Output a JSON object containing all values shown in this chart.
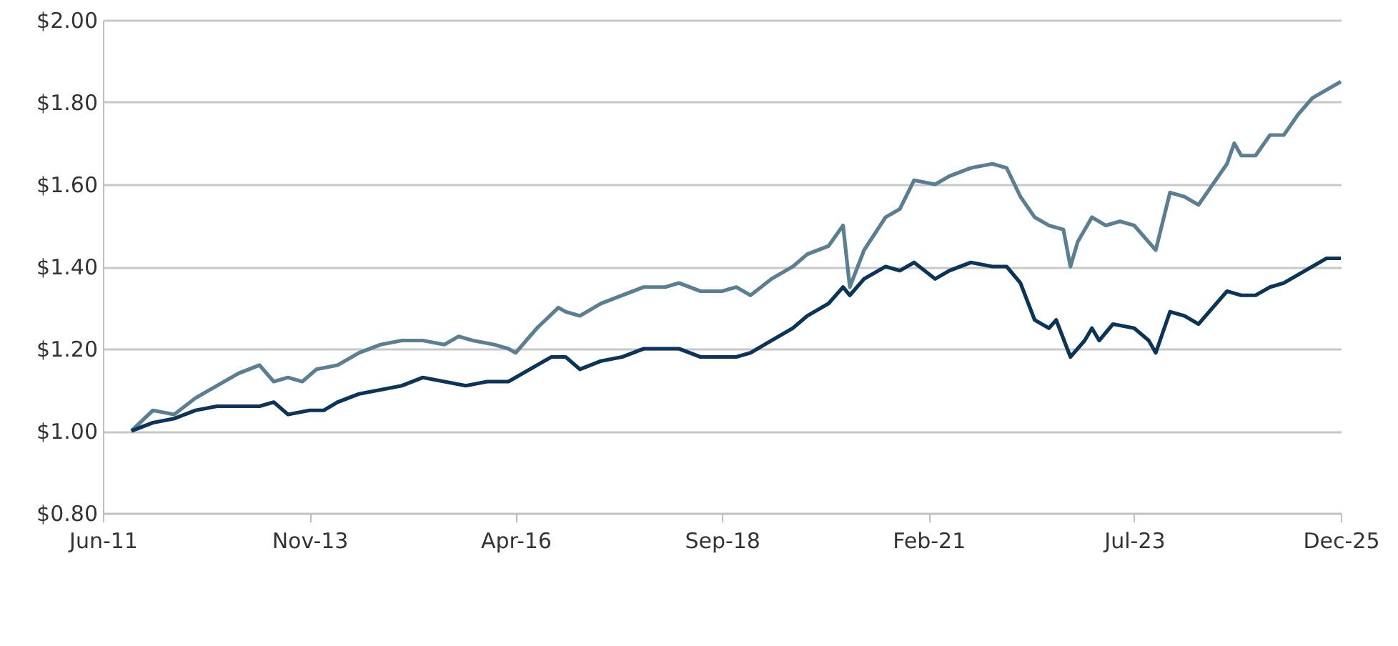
{
  "chart_data": {
    "type": "line",
    "grid": "y",
    "line_style": "solid",
    "marker": "none",
    "xlim": [
      "2011-06",
      "2025-12"
    ],
    "xticks": [
      {
        "value": "2011-06",
        "label": "Jun-11"
      },
      {
        "value": "2013-11",
        "label": "Nov-13"
      },
      {
        "value": "2016-04",
        "label": "Apr-16"
      },
      {
        "value": "2018-09",
        "label": "Sep-18"
      },
      {
        "value": "2021-02",
        "label": "Feb-21"
      },
      {
        "value": "2023-07",
        "label": "Jul-23"
      },
      {
        "value": "2025-12",
        "label": "Dec-25"
      }
    ],
    "ylim": [
      0.8,
      2.0
    ],
    "yticks": [
      {
        "value": 0.8,
        "label": "$0.80"
      },
      {
        "value": 1.0,
        "label": "$1.00"
      },
      {
        "value": 1.2,
        "label": "$1.20"
      },
      {
        "value": 1.4,
        "label": "$1.40"
      },
      {
        "value": 1.6,
        "label": "$1.60"
      },
      {
        "value": 1.8,
        "label": "$1.80"
      },
      {
        "value": 2.0,
        "label": "$2.00"
      }
    ],
    "series": [
      {
        "color": "#5a7f93",
        "x": [
          "2011-10",
          "2012-01",
          "2012-04",
          "2012-07",
          "2012-10",
          "2013-01",
          "2013-04",
          "2013-06",
          "2013-08",
          "2013-10",
          "2013-12",
          "2014-03",
          "2014-06",
          "2014-09",
          "2014-12",
          "2015-03",
          "2015-06",
          "2015-08",
          "2015-10",
          "2016-01",
          "2016-03",
          "2016-04",
          "2016-07",
          "2016-10",
          "2016-11",
          "2017-01",
          "2017-04",
          "2017-07",
          "2017-10",
          "2018-01",
          "2018-03",
          "2018-06",
          "2018-09",
          "2018-11",
          "2019-01",
          "2019-04",
          "2019-07",
          "2019-09",
          "2019-12",
          "2020-02",
          "2020-03",
          "2020-05",
          "2020-08",
          "2020-10",
          "2020-12",
          "2021-03",
          "2021-05",
          "2021-08",
          "2021-11",
          "2022-01",
          "2022-03",
          "2022-05",
          "2022-07",
          "2022-09",
          "2022-10",
          "2022-11",
          "2023-01",
          "2023-03",
          "2023-05",
          "2023-07",
          "2023-10",
          "2023-12",
          "2024-02",
          "2024-04",
          "2024-06",
          "2024-08",
          "2024-09",
          "2024-10",
          "2024-12",
          "2025-02",
          "2025-04",
          "2025-06",
          "2025-08",
          "2025-10",
          "2025-12"
        ],
        "values": [
          1.0,
          1.05,
          1.04,
          1.08,
          1.11,
          1.14,
          1.16,
          1.12,
          1.13,
          1.12,
          1.15,
          1.16,
          1.19,
          1.21,
          1.22,
          1.22,
          1.21,
          1.23,
          1.22,
          1.21,
          1.2,
          1.19,
          1.25,
          1.3,
          1.29,
          1.28,
          1.31,
          1.33,
          1.35,
          1.35,
          1.36,
          1.34,
          1.34,
          1.35,
          1.33,
          1.37,
          1.4,
          1.43,
          1.45,
          1.5,
          1.35,
          1.44,
          1.52,
          1.54,
          1.61,
          1.6,
          1.62,
          1.64,
          1.65,
          1.64,
          1.57,
          1.52,
          1.5,
          1.49,
          1.4,
          1.46,
          1.52,
          1.5,
          1.51,
          1.5,
          1.44,
          1.58,
          1.57,
          1.55,
          1.6,
          1.65,
          1.7,
          1.67,
          1.67,
          1.72,
          1.72,
          1.77,
          1.81,
          1.83,
          1.85
        ]
      },
      {
        "color": "#0b3558",
        "x": [
          "2011-10",
          "2012-01",
          "2012-04",
          "2012-07",
          "2012-10",
          "2013-04",
          "2013-06",
          "2013-08",
          "2013-11",
          "2014-01",
          "2014-03",
          "2014-06",
          "2014-09",
          "2014-12",
          "2015-03",
          "2015-06",
          "2015-09",
          "2015-12",
          "2016-03",
          "2016-06",
          "2016-09",
          "2016-11",
          "2017-01",
          "2017-04",
          "2017-07",
          "2017-10",
          "2018-01",
          "2018-03",
          "2018-06",
          "2018-09",
          "2018-11",
          "2019-01",
          "2019-04",
          "2019-07",
          "2019-09",
          "2019-12",
          "2020-02",
          "2020-03",
          "2020-05",
          "2020-08",
          "2020-10",
          "2020-12",
          "2021-03",
          "2021-05",
          "2021-08",
          "2021-11",
          "2022-01",
          "2022-03",
          "2022-05",
          "2022-07",
          "2022-08",
          "2022-10",
          "2022-12",
          "2023-01",
          "2023-02",
          "2023-04",
          "2023-07",
          "2023-09",
          "2023-10",
          "2023-12",
          "2024-02",
          "2024-04",
          "2024-06",
          "2024-08",
          "2024-10",
          "2024-12",
          "2025-02",
          "2025-04",
          "2025-06",
          "2025-08",
          "2025-10",
          "2025-12"
        ],
        "values": [
          1.0,
          1.02,
          1.03,
          1.05,
          1.06,
          1.06,
          1.07,
          1.04,
          1.05,
          1.05,
          1.07,
          1.09,
          1.1,
          1.11,
          1.13,
          1.12,
          1.11,
          1.12,
          1.12,
          1.15,
          1.18,
          1.18,
          1.15,
          1.17,
          1.18,
          1.2,
          1.2,
          1.2,
          1.18,
          1.18,
          1.18,
          1.19,
          1.22,
          1.25,
          1.28,
          1.31,
          1.35,
          1.33,
          1.37,
          1.4,
          1.39,
          1.41,
          1.37,
          1.39,
          1.41,
          1.4,
          1.4,
          1.36,
          1.27,
          1.25,
          1.27,
          1.18,
          1.22,
          1.25,
          1.22,
          1.26,
          1.25,
          1.22,
          1.19,
          1.29,
          1.28,
          1.26,
          1.3,
          1.34,
          1.33,
          1.33,
          1.35,
          1.36,
          1.38,
          1.4,
          1.42,
          1.42
        ]
      }
    ]
  }
}
